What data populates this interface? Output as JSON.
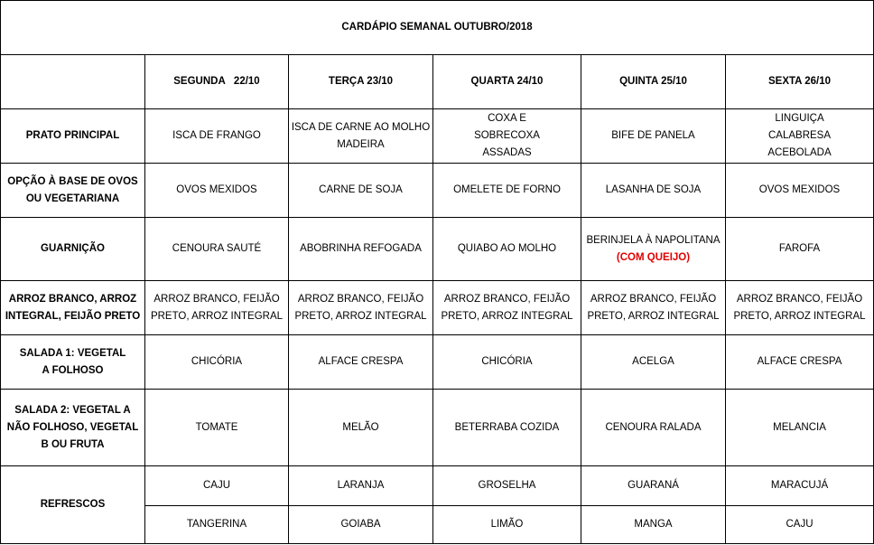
{
  "title": "CARDÁPIO SEMANAL OUTUBRO/2018",
  "days": [
    "SEGUNDA   22/10",
    "TERÇA 23/10",
    "QUARTA 24/10",
    "QUINTA 25/10",
    "SEXTA 26/10"
  ],
  "rows": [
    {
      "label": "PRATO PRINCIPAL",
      "cells": [
        "ISCA DE FRANGO",
        "ISCA DE CARNE AO MOLHO MADEIRA",
        "COXA E SOBRECOXA ASSADAS",
        "BIFE DE PANELA",
        "LINGUIÇA CALABRESA ACEBOLADA"
      ]
    },
    {
      "label": "OPÇÃO À BASE DE OVOS OU VEGETARIANA",
      "cells": [
        "OVOS MEXIDOS",
        "CARNE DE SOJA",
        "OMELETE DE FORNO",
        "LASANHA DE SOJA",
        "OVOS MEXIDOS"
      ]
    },
    {
      "label": "GUARNIÇÃO",
      "cells": [
        "CENOURA SAUTÉ",
        "ABOBRINHA REFOGADA",
        "QUIABO AO MOLHO",
        "BERINJELA À NAPOLITANA",
        "FAROFA"
      ],
      "note": "(COM QUEIJO)",
      "note_color": "#e00000"
    },
    {
      "label": "ARROZ BRANCO, ARROZ INTEGRAL, FEIJÃO PRETO",
      "cells": [
        "ARROZ BRANCO, FEIJÃO PRETO, ARROZ INTEGRAL",
        "ARROZ BRANCO, FEIJÃO PRETO, ARROZ INTEGRAL",
        "ARROZ BRANCO, FEIJÃO PRETO, ARROZ INTEGRAL",
        "ARROZ BRANCO, FEIJÃO PRETO, ARROZ INTEGRAL",
        "ARROZ BRANCO, FEIJÃO PRETO, ARROZ INTEGRAL"
      ]
    },
    {
      "label": "SALADA 1: VEGETAL A FOLHOSO",
      "cells": [
        "CHICÓRIA",
        "ALFACE CRESPA",
        "CHICÓRIA",
        "ACELGA",
        "ALFACE CRESPA"
      ]
    },
    {
      "label": "SALADA 2: VEGETAL A NÃO FOLHOSO, VEGETAL B OU FRUTA",
      "cells": [
        "TOMATE",
        "MELÃO",
        "BETERRABA COZIDA",
        "CENOURA RALADA",
        "MELANCIA"
      ]
    }
  ],
  "refrescos": {
    "label": "REFRESCOS",
    "row1": [
      "CAJU",
      "LARANJA",
      "GROSELHA",
      "GUARANÁ",
      "MARACUJÁ"
    ],
    "row2": [
      "TANGERINA",
      "GOIABA",
      "LIMÃO",
      "MANGA",
      "CAJU"
    ]
  }
}
